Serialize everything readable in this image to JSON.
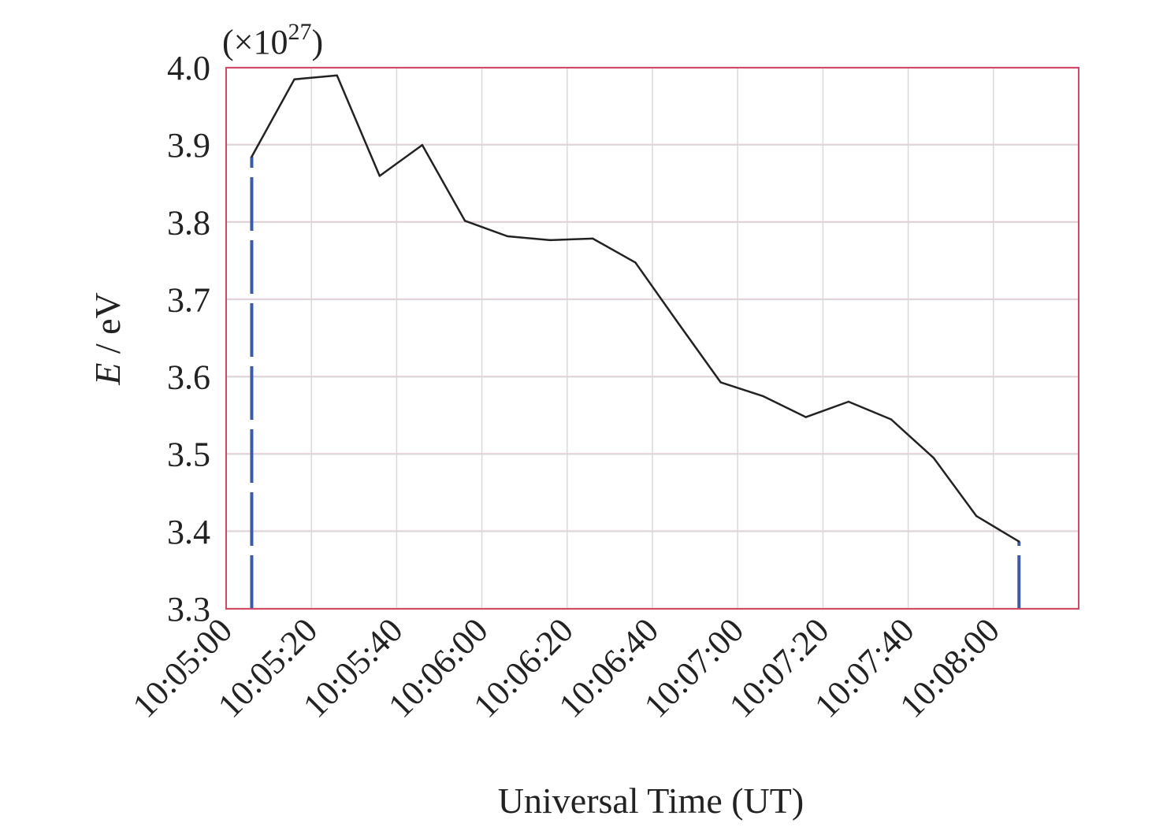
{
  "chart_data": {
    "type": "line",
    "title": "",
    "xlabel": "Universal Time (UT)",
    "ylabel_var": "E",
    "ylabel_unit": " / eV",
    "y_multiplier": {
      "base": "(×10",
      "exp": "27",
      "close": ")"
    },
    "x_range": [
      "10:05:00",
      "10:08:20"
    ],
    "ylim": [
      3.3,
      4.0
    ],
    "x_ticks": [
      "10:05:00",
      "10:05:20",
      "10:05:40",
      "10:06:00",
      "10:06:20",
      "10:06:40",
      "10:07:00",
      "10:07:20",
      "10:07:40",
      "10:08:00"
    ],
    "y_ticks": [
      "3.3",
      "3.4",
      "3.5",
      "3.6",
      "3.7",
      "3.8",
      "3.9",
      "4.0"
    ],
    "grid": true,
    "series": [
      {
        "color": "#222222",
        "x": [
          "10:05:06",
          "10:05:16",
          "10:05:26",
          "10:05:36",
          "10:05:46",
          "10:05:56",
          "10:06:06",
          "10:06:16",
          "10:06:26",
          "10:06:36",
          "10:06:46",
          "10:06:56",
          "10:07:06",
          "10:07:16",
          "10:07:26",
          "10:07:36",
          "10:07:46",
          "10:07:56",
          "10:08:06"
        ],
        "values": [
          3.885,
          3.985,
          3.99,
          3.86,
          3.9,
          3.802,
          3.782,
          3.777,
          3.779,
          3.748,
          3.67,
          3.593,
          3.575,
          3.548,
          3.568,
          3.545,
          3.495,
          3.42,
          3.387
        ]
      }
    ],
    "markers": [
      {
        "x": "10:05:06",
        "from": 3.3,
        "to": 3.885,
        "color": "#3a5ba8"
      },
      {
        "x": "10:08:06",
        "from": 3.3,
        "to": 3.387,
        "color": "#3a5ba8"
      }
    ],
    "colors": {
      "frame": "#d04a66",
      "grid": "#d9d9d9",
      "grid_pink": "#f0c8d0",
      "line": "#222222",
      "marker": "#3a5ba8"
    }
  }
}
